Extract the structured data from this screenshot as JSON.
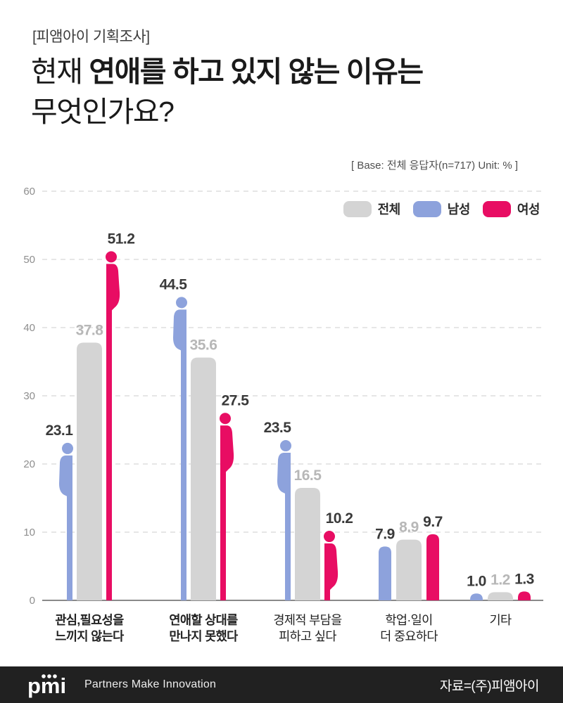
{
  "header": {
    "eyebrow": "[피앰아이 기획조사]",
    "title_prefix": "현재 ",
    "title_bold": "연애를 하고 있지 않는 이유는",
    "title_line2": "무엇인가요?",
    "base_note": "[ Base: 전체 응답자(n=717) Unit: % ]"
  },
  "chart_data": {
    "type": "bar",
    "title": "현재 연애를 하고 있지 않는 이유는 무엇인가요?",
    "unit": "%",
    "ylim": [
      0,
      60
    ],
    "yticks": [
      0,
      10,
      20,
      30,
      40,
      50,
      60
    ],
    "grid": "horizontal-dashed",
    "legend_position": "top-right",
    "legend": [
      {
        "name": "전체",
        "color": "#d4d4d4"
      },
      {
        "name": "남성",
        "color": "#8da2dc"
      },
      {
        "name": "여성",
        "color": "#e80d63"
      }
    ],
    "categories": [
      {
        "lines": [
          "관심,필요성을",
          "느끼지 않는다"
        ],
        "emphasis": true
      },
      {
        "lines": [
          "연애할 상대를",
          "만나지 못했다"
        ],
        "emphasis": true
      },
      {
        "lines": [
          "경제적 부담을",
          "피하고 싶다"
        ],
        "emphasis": false
      },
      {
        "lines": [
          "학업·일이",
          "더 중요하다"
        ],
        "emphasis": false
      },
      {
        "lines": [
          "기타"
        ],
        "emphasis": false
      }
    ],
    "series": [
      {
        "name": "남성",
        "color": "#8da2dc",
        "style": "pictogram-male",
        "label_color": "#3a3a3a",
        "values": [
          23.1,
          44.5,
          23.5,
          7.9,
          1.0
        ]
      },
      {
        "name": "전체",
        "color": "#d4d4d4",
        "style": "bar",
        "label_color": "#b7b7b7",
        "values": [
          37.8,
          35.6,
          16.5,
          8.9,
          1.2
        ]
      },
      {
        "name": "여성",
        "color": "#e80d63",
        "style": "pictogram-female",
        "label_color": "#3a3a3a",
        "values": [
          51.2,
          27.5,
          10.2,
          9.7,
          1.3
        ]
      }
    ]
  },
  "footer": {
    "logo": "pmi",
    "tagline": "Partners Make Innovation",
    "source": "자료=(주)피앰아이"
  }
}
